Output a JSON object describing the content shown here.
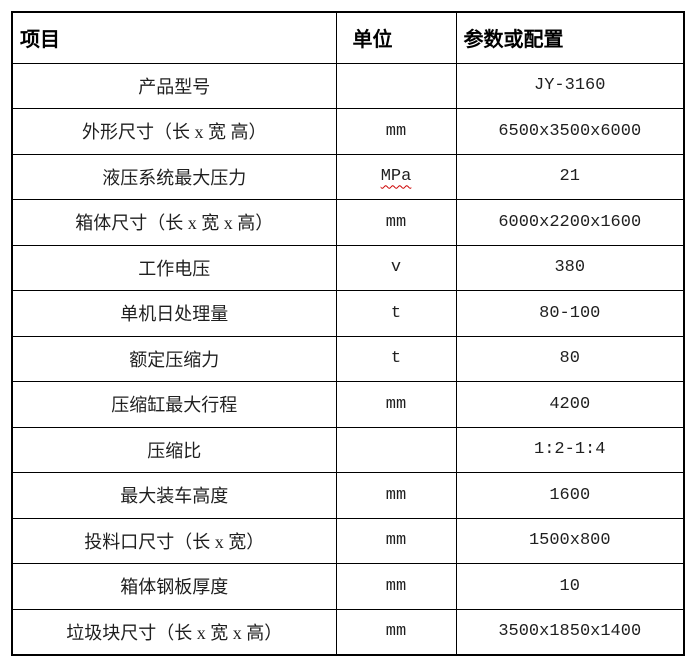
{
  "colors": {
    "background": "#ffffff",
    "border": "#000000",
    "header_text": "#000000",
    "body_text": "#1f1f1f",
    "spellcheck_underline": "#cc0000"
  },
  "table": {
    "headers": [
      "项目",
      "单位",
      "参数或配置"
    ],
    "rows": [
      {
        "item": "产品型号",
        "unit": "",
        "value": "JY-3160"
      },
      {
        "item": "外形尺寸（长 x 宽 高）",
        "unit": "mm",
        "value": "6500x3500x6000"
      },
      {
        "item": "液压系统最大压力",
        "unit": "MPa",
        "value": "21",
        "unit_spellcheck": true
      },
      {
        "item": "箱体尺寸（长 x 宽 x 高）",
        "unit": "mm",
        "value": "6000x2200x1600"
      },
      {
        "item": "工作电压",
        "unit": "v",
        "value": "380"
      },
      {
        "item": "单机日处理量",
        "unit": "t",
        "value": "80-100"
      },
      {
        "item": "额定压缩力",
        "unit": "t",
        "value": "80"
      },
      {
        "item": "压缩缸最大行程",
        "unit": "mm",
        "value": "4200"
      },
      {
        "item": "压缩比",
        "unit": "",
        "value": "1:2-1:4"
      },
      {
        "item": "最大装车高度",
        "unit": "mm",
        "value": "1600"
      },
      {
        "item": "投料口尺寸（长 x 宽）",
        "unit": "mm",
        "value": "1500x800"
      },
      {
        "item": "箱体钢板厚度",
        "unit": "mm",
        "value": "10"
      },
      {
        "item": "垃圾块尺寸（长 x 宽 x 高）",
        "unit": "mm",
        "value": "3500x1850x1400"
      }
    ]
  }
}
